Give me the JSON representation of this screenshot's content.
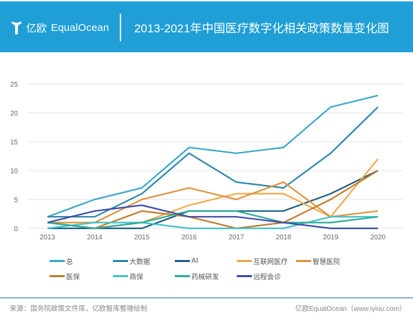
{
  "header": {
    "logo_cn": "亿欧",
    "logo_en": "EqualOcean",
    "title": "2013-2021年中国医疗数字化相关政策数量变化图"
  },
  "chart_data": {
    "type": "line",
    "title": "2013-2021年中国医疗数字化相关政策数量变化图",
    "xlabel": "",
    "ylabel": "",
    "x": [
      "2013",
      "2014",
      "2015",
      "2016",
      "2017",
      "2018",
      "2019",
      "2020"
    ],
    "ylim": [
      0,
      25
    ],
    "yticks": [
      0,
      5,
      10,
      15,
      20,
      25
    ],
    "grid": true,
    "legend_position": "bottom",
    "series": [
      {
        "name": "总",
        "color": "#3aa6c9",
        "values": [
          2,
          5,
          7,
          14,
          13,
          14,
          21,
          23
        ]
      },
      {
        "name": "大数据",
        "color": "#2a86a8",
        "values": [
          2,
          2,
          6,
          13,
          8,
          7,
          13,
          21
        ]
      },
      {
        "name": "AI",
        "color": "#1d5e86",
        "values": [
          0,
          0,
          0,
          3,
          3,
          3,
          6,
          10
        ]
      },
      {
        "name": "互联网医疗",
        "color": "#f0a84a",
        "values": [
          1,
          0,
          1,
          4,
          6,
          6,
          2,
          12
        ]
      },
      {
        "name": "智慧医院",
        "color": "#e0913a",
        "values": [
          1,
          1,
          5,
          7,
          5,
          8,
          2,
          3
        ]
      },
      {
        "name": "医保",
        "color": "#c47a2c",
        "values": [
          1,
          0,
          3,
          2,
          0,
          1,
          5,
          10
        ]
      },
      {
        "name": "商保",
        "color": "#3fc3c7",
        "values": [
          0,
          1,
          1,
          0,
          0,
          0,
          2,
          2
        ]
      },
      {
        "name": "药械研发",
        "color": "#2aab9a",
        "values": [
          1,
          0,
          1,
          3,
          3,
          1,
          1,
          2
        ]
      },
      {
        "name": "远程会诊",
        "color": "#3d4ca8",
        "values": [
          1,
          3,
          4,
          2,
          2,
          1,
          0,
          0
        ]
      }
    ]
  },
  "footer": {
    "source": "来源：国务院政策文件库，亿欧智库整理绘制",
    "credit": "亿欧EqualOcean（www.iyiou.com）"
  }
}
